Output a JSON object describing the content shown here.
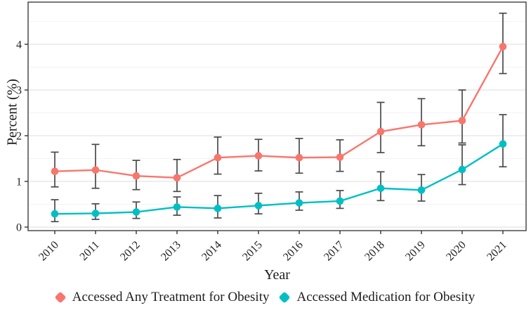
{
  "chart_data": {
    "type": "line",
    "title": "",
    "xlabel": "Year",
    "ylabel": "Percent (%)",
    "categories": [
      "2010",
      "2011",
      "2012",
      "2013",
      "2014",
      "2015",
      "2016",
      "2017",
      "2018",
      "2019",
      "2020",
      "2021"
    ],
    "y_ticks": [
      0,
      1,
      2,
      3,
      4
    ],
    "y_minor_ticks": [
      0.5,
      1.5,
      2.5,
      3.5,
      4.5
    ],
    "ylim": [
      -0.08,
      4.92
    ],
    "grid": "horizontal-only, major and minor",
    "legend_position": "bottom-center",
    "error_bars": "95% CI whiskers with caps",
    "error_bar_color": "#4a4a4a",
    "panel_border_color": "#3f3f3f",
    "major_grid_color": "#e4e4e4",
    "minor_grid_color": "#f3f3f3",
    "series": [
      {
        "name": "Accessed Any Treatment for Obesity",
        "color": "#F8766D",
        "values": [
          1.22,
          1.25,
          1.12,
          1.08,
          1.52,
          1.56,
          1.52,
          1.53,
          2.09,
          2.24,
          2.33,
          3.95
        ],
        "ci_low": [
          0.88,
          0.85,
          0.82,
          0.78,
          1.16,
          1.23,
          1.18,
          1.22,
          1.63,
          1.78,
          1.84,
          3.36
        ],
        "ci_high": [
          1.64,
          1.81,
          1.46,
          1.48,
          1.97,
          1.92,
          1.94,
          1.91,
          2.73,
          2.81,
          3.0,
          4.68
        ]
      },
      {
        "name": "Accessed Medication for Obesity",
        "color": "#00BFC4",
        "values": [
          0.29,
          0.3,
          0.33,
          0.44,
          0.41,
          0.47,
          0.53,
          0.57,
          0.85,
          0.81,
          1.26,
          1.82
        ],
        "ci_low": [
          0.12,
          0.17,
          0.19,
          0.26,
          0.2,
          0.29,
          0.37,
          0.41,
          0.58,
          0.57,
          0.93,
          1.32
        ],
        "ci_high": [
          0.6,
          0.51,
          0.55,
          0.66,
          0.69,
          0.74,
          0.77,
          0.8,
          1.21,
          1.15,
          1.8,
          2.46
        ]
      }
    ]
  }
}
